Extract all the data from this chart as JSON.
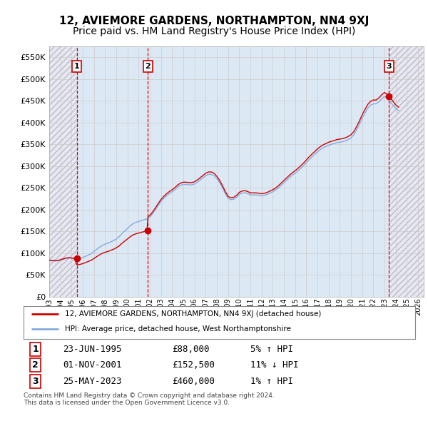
{
  "title": "12, AVIEMORE GARDENS, NORTHAMPTON, NN4 9XJ",
  "subtitle": "Price paid vs. HM Land Registry's House Price Index (HPI)",
  "xlim": [
    1993.0,
    2026.5
  ],
  "ylim": [
    0,
    575000
  ],
  "yticks": [
    0,
    50000,
    100000,
    150000,
    200000,
    250000,
    300000,
    350000,
    400000,
    450000,
    500000,
    550000
  ],
  "ytick_labels": [
    "£0",
    "£50K",
    "£100K",
    "£150K",
    "£200K",
    "£250K",
    "£300K",
    "£350K",
    "£400K",
    "£450K",
    "£500K",
    "£550K"
  ],
  "xticks": [
    1993,
    1994,
    1995,
    1996,
    1997,
    1998,
    1999,
    2000,
    2001,
    2002,
    2003,
    2004,
    2005,
    2006,
    2007,
    2008,
    2009,
    2010,
    2011,
    2012,
    2013,
    2014,
    2015,
    2016,
    2017,
    2018,
    2019,
    2020,
    2021,
    2022,
    2023,
    2024,
    2025,
    2026
  ],
  "hpi_years": [
    1993.0,
    1993.25,
    1993.5,
    1993.75,
    1994.0,
    1994.25,
    1994.5,
    1994.75,
    1995.0,
    1995.25,
    1995.5,
    1995.75,
    1996.0,
    1996.25,
    1996.5,
    1996.75,
    1997.0,
    1997.25,
    1997.5,
    1997.75,
    1998.0,
    1998.25,
    1998.5,
    1998.75,
    1999.0,
    1999.25,
    1999.5,
    1999.75,
    2000.0,
    2000.25,
    2000.5,
    2000.75,
    2001.0,
    2001.25,
    2001.5,
    2001.75,
    2002.0,
    2002.25,
    2002.5,
    2002.75,
    2003.0,
    2003.25,
    2003.5,
    2003.75,
    2004.0,
    2004.25,
    2004.5,
    2004.75,
    2005.0,
    2005.25,
    2005.5,
    2005.75,
    2006.0,
    2006.25,
    2006.5,
    2006.75,
    2007.0,
    2007.25,
    2007.5,
    2007.75,
    2008.0,
    2008.25,
    2008.5,
    2008.75,
    2009.0,
    2009.25,
    2009.5,
    2009.75,
    2010.0,
    2010.25,
    2010.5,
    2010.75,
    2011.0,
    2011.25,
    2011.5,
    2011.75,
    2012.0,
    2012.25,
    2012.5,
    2012.75,
    2013.0,
    2013.25,
    2013.5,
    2013.75,
    2014.0,
    2014.25,
    2014.5,
    2014.75,
    2015.0,
    2015.25,
    2015.5,
    2015.75,
    2016.0,
    2016.25,
    2016.5,
    2016.75,
    2017.0,
    2017.25,
    2017.5,
    2017.75,
    2018.0,
    2018.25,
    2018.5,
    2018.75,
    2019.0,
    2019.25,
    2019.5,
    2019.75,
    2020.0,
    2020.25,
    2020.5,
    2020.75,
    2021.0,
    2021.25,
    2021.5,
    2021.75,
    2022.0,
    2022.25,
    2022.5,
    2022.75,
    2023.0,
    2023.25,
    2023.5,
    2023.75,
    2024.0,
    2024.25
  ],
  "hpi_values": [
    83000,
    82500,
    82000,
    82500,
    84000,
    86000,
    88000,
    89000,
    88000,
    87500,
    87000,
    88000,
    90000,
    93000,
    96000,
    99000,
    104000,
    109000,
    114000,
    118000,
    121000,
    123000,
    126000,
    129000,
    133000,
    138000,
    145000,
    151000,
    157000,
    163000,
    168000,
    171000,
    173000,
    175000,
    177000,
    179000,
    183000,
    191000,
    200000,
    210000,
    219000,
    226000,
    232000,
    237000,
    241000,
    246000,
    252000,
    256000,
    258000,
    258000,
    257000,
    257000,
    259000,
    263000,
    268000,
    273000,
    278000,
    281000,
    281000,
    278000,
    271000,
    262000,
    250000,
    237000,
    226000,
    223000,
    224000,
    228000,
    235000,
    238000,
    239000,
    237000,
    234000,
    234000,
    234000,
    233000,
    232000,
    233000,
    235000,
    238000,
    241000,
    245000,
    250000,
    256000,
    262000,
    268000,
    274000,
    279000,
    284000,
    289000,
    295000,
    301000,
    308000,
    315000,
    321000,
    327000,
    333000,
    338000,
    342000,
    345000,
    348000,
    350000,
    352000,
    354000,
    355000,
    356000,
    358000,
    361000,
    365000,
    372000,
    383000,
    396000,
    410000,
    422000,
    433000,
    440000,
    443000,
    443000,
    448000,
    455000,
    460000,
    455000,
    448000,
    440000,
    432000,
    427000
  ],
  "sale_dates": [
    1995.47,
    2001.83,
    2023.39
  ],
  "sale_prices": [
    88000,
    152500,
    460000
  ],
  "sale_labels": [
    "1",
    "2",
    "3"
  ],
  "vline_color": "#dd0000",
  "vline_style": "--",
  "sale_dot_color": "#cc0000",
  "hpi_line_color": "#88aadd",
  "price_line_color": "#cc0000",
  "shade_between_color": "#dde8f5",
  "shade_hatch_color": "#bbbbcc",
  "shade_right_color": "#dde8f5",
  "grid_color": "#cccccc",
  "background_color": "#ffffff",
  "legend_entries": [
    "12, AVIEMORE GARDENS, NORTHAMPTON, NN4 9XJ (detached house)",
    "HPI: Average price, detached house, West Northamptonshire"
  ],
  "legend_line_colors": [
    "#cc0000",
    "#88aadd"
  ],
  "table_rows": [
    {
      "label": "1",
      "date": "23-JUN-1995",
      "price": "£88,000",
      "hpi": "5% ↑ HPI"
    },
    {
      "label": "2",
      "date": "01-NOV-2001",
      "price": "£152,500",
      "hpi": "11% ↓ HPI"
    },
    {
      "label": "3",
      "date": "25-MAY-2023",
      "price": "£460,000",
      "hpi": "1% ↑ HPI"
    }
  ],
  "footer": "Contains HM Land Registry data © Crown copyright and database right 2024.\nThis data is licensed under the Open Government Licence v3.0.",
  "title_fontsize": 11,
  "subtitle_fontsize": 10
}
